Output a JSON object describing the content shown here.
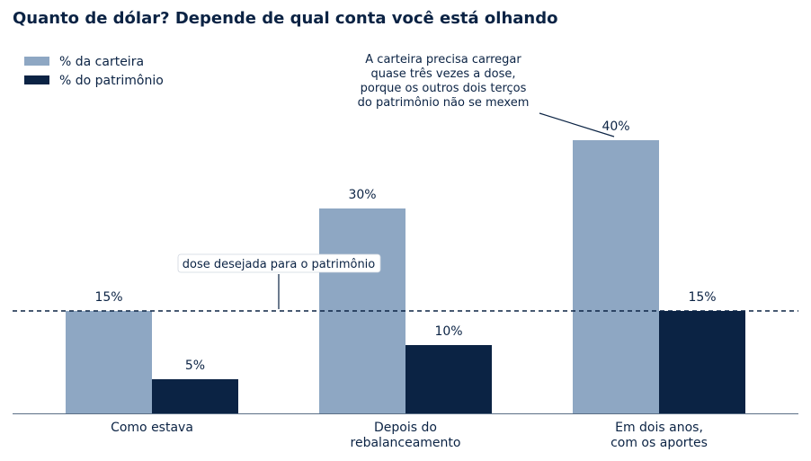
{
  "title": "Quanto de dólar? Depende de qual conta você está olhando",
  "chart_data": {
    "type": "bar",
    "categories": [
      [
        "Como estava"
      ],
      [
        "Depois do",
        "rebalanceamento"
      ],
      [
        "Em dois anos,",
        "com os aportes"
      ]
    ],
    "series": [
      {
        "name": "% da carteira",
        "values": [
          15,
          30,
          40
        ],
        "color": "#8ea7c3"
      },
      {
        "name": "% do patrimônio",
        "values": [
          5,
          10,
          15
        ],
        "color": "#0b2344"
      }
    ],
    "value_suffix": "%",
    "ylim": [
      0,
      44
    ],
    "reference_line": {
      "value": 15,
      "label": "dose desejada para o patrimônio",
      "style": "dashed"
    },
    "annotation": {
      "lines": [
        "A carteira precisa carregar",
        "quase três vezes a dose,",
        "porque os outros dois terços",
        "do patrimônio não se mexem"
      ],
      "points_to": {
        "category_index": 2,
        "series_index": 0
      }
    },
    "legend_position": "top-left",
    "grid": false,
    "xlabel": "",
    "ylabel": ""
  }
}
